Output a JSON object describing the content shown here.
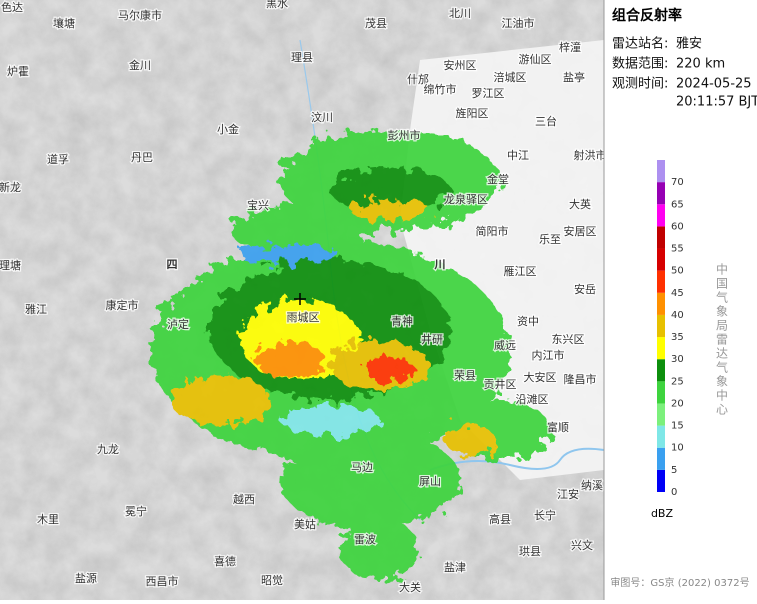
{
  "panel": {
    "title": "组合反射率",
    "station_label": "雷达站名:",
    "station": "雅安",
    "range_label": "数据范围:",
    "range": "220 km",
    "time_label": "观测时间:",
    "date": "2024-05-25",
    "time": "20:11:57 BJT",
    "credit": "中国气象局雷达气象中心",
    "approval": "审图号：GS京 (2022) 0372号"
  },
  "legend": {
    "unit": "dBZ",
    "levels": [
      0,
      5,
      10,
      15,
      20,
      25,
      30,
      35,
      40,
      45,
      50,
      55,
      60,
      65,
      70
    ],
    "colors": [
      "#0000f6",
      "#3aa0f0",
      "#7fe7e7",
      "#7cf07c",
      "#3ed43e",
      "#0d8f0d",
      "#ffff00",
      "#e7c000",
      "#ff9000",
      "#ff3000",
      "#d60000",
      "#c00000",
      "#ff00f0",
      "#9600b4",
      "#ad90f0"
    ]
  },
  "map": {
    "labels": [
      "色达",
      "壤塘",
      "马尔康市",
      "黑水",
      "茂县",
      "北川",
      "江油市",
      "梓潼",
      "炉霍",
      "金川",
      "理县",
      "安州区",
      "游仙区",
      "什邡",
      "绵竹市",
      "涪城区",
      "罗江区",
      "盐亭",
      "旌阳区",
      "三台",
      "小金",
      "汶川",
      "彭州市",
      "中江",
      "射洪市",
      "道孚",
      "丹巴",
      "金堂",
      "龙泉驿区",
      "新龙",
      "宝兴",
      "简阳市",
      "乐至",
      "大英",
      "安居区",
      "理塘",
      "四",
      "川",
      "雁江区",
      "安岳",
      "雅江",
      "康定市",
      "泸定",
      "雨城区",
      "青神",
      "资中",
      "井研",
      "威远",
      "东兴区",
      "内江市",
      "荣县",
      "大安区",
      "隆昌市",
      "贡井区",
      "沿滩区",
      "富顺",
      "九龙",
      "屏山",
      "江安",
      "长宁",
      "高县",
      "珙县",
      "兴文",
      "雷波",
      "马边",
      "美姑",
      "越西",
      "冕宁",
      "木里",
      "盐源",
      "西昌市",
      "喜德",
      "昭觉",
      "大关",
      "盐津",
      "纳溪"
    ]
  }
}
